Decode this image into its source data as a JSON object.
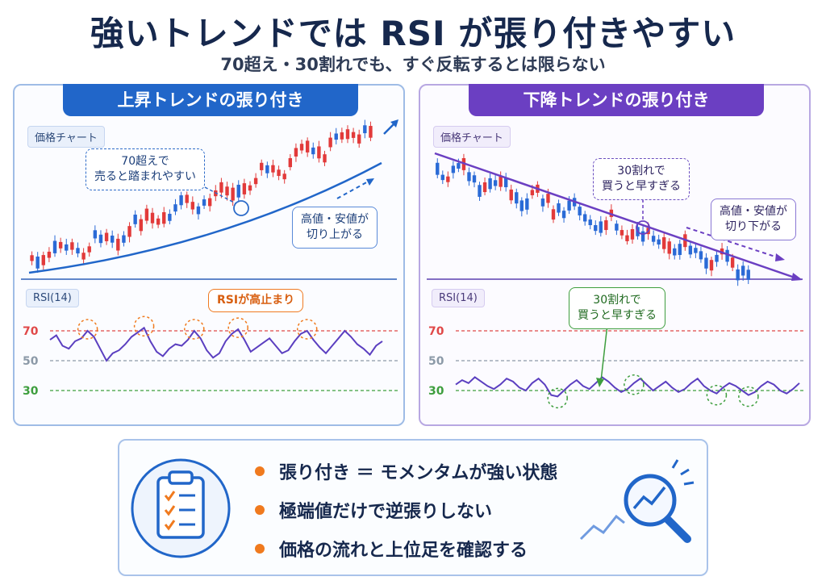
{
  "title": "強いトレンドでは RSI が張り付きやすい",
  "subtitle": "70超え・30割れでも、すぐ反転するとは限らない",
  "colors": {
    "up": "#e23a3a",
    "down": "#2a6ad6",
    "uptrend": "#2166c9",
    "downtrend": "#6b3fc2",
    "rsi_line": "#5b3fc0",
    "level70": "#e04848",
    "level50": "#8c9aa8",
    "level30": "#3e9e3e",
    "accent": "#f07a1e"
  },
  "left_panel": {
    "banner": "上昇トレンドの張り付き",
    "price_label": "価格チャート",
    "note_sell": "70超えで\n売ると踏まれやすい",
    "note_trend": "高値・安値が\n切り上がる",
    "rsi_label": "RSI(14)",
    "rsi_note": "RSIが高止まり",
    "levels": [
      "70",
      "50",
      "30"
    ]
  },
  "right_panel": {
    "banner": "下降トレンドの張り付き",
    "price_label": "価格チャート",
    "note_buy": "30割れで\n買うと早すぎる",
    "note_trend": "高値・安値が\n切り下がる",
    "rsi_label": "RSI(14)",
    "rsi_note": "30割れで\n買うと早すぎる",
    "levels": [
      "70",
      "50",
      "30"
    ]
  },
  "summary": {
    "icon_left": "clipboard-checklist-icon",
    "icon_right": "magnifier-chart-icon",
    "points": [
      "張り付き ＝ モメンタムが強い状態",
      "極端値だけで逆張りしない",
      "価格の流れと上位足を確認する"
    ]
  },
  "chart_data": [
    {
      "type": "candlestick-rsi",
      "panel": "上昇トレンドの張り付き",
      "trend": "up",
      "rsi_levels": [
        70,
        50,
        30
      ],
      "rsi_values": [
        64,
        67,
        60,
        58,
        63,
        65,
        70,
        66,
        58,
        50,
        55,
        57,
        61,
        66,
        69,
        72,
        63,
        56,
        53,
        58,
        61,
        60,
        64,
        70,
        65,
        57,
        52,
        55,
        63,
        68,
        71,
        64,
        56,
        59,
        62,
        65,
        60,
        55,
        57,
        63,
        68,
        70,
        64,
        59,
        55,
        60,
        65,
        70,
        66,
        61,
        58,
        54,
        60,
        63
      ],
      "candles": 60
    },
    {
      "type": "candlestick-rsi",
      "panel": "下降トレンドの張り付き",
      "trend": "down",
      "rsi_levels": [
        70,
        50,
        30
      ],
      "rsi_values": [
        34,
        37,
        35,
        39,
        36,
        33,
        31,
        34,
        38,
        36,
        32,
        30,
        35,
        38,
        34,
        27,
        26,
        30,
        34,
        37,
        33,
        31,
        35,
        39,
        36,
        32,
        29,
        31,
        35,
        38,
        34,
        30,
        33,
        36,
        32,
        29,
        31,
        35,
        38,
        33,
        30,
        28,
        32,
        35,
        33,
        30,
        27,
        29,
        33,
        36,
        34,
        30,
        28,
        31,
        35
      ],
      "candles": 60
    }
  ]
}
